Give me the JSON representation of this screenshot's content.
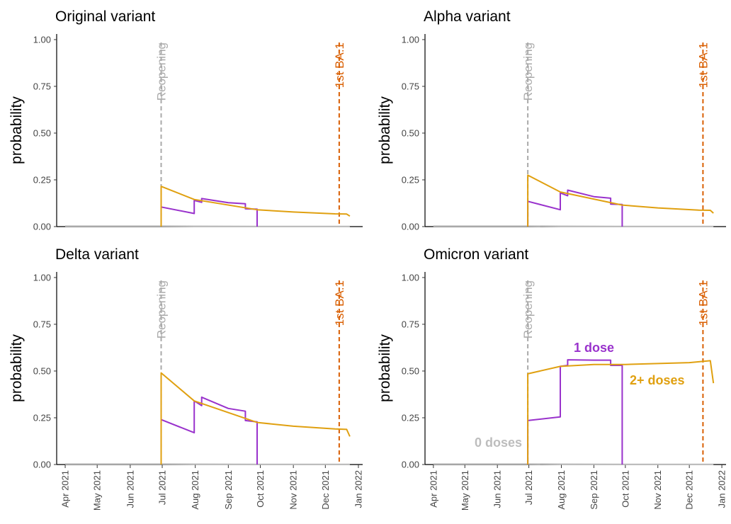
{
  "colors": {
    "zero_doses": "#bdbdbd",
    "one_dose": "#9932CC",
    "two_plus_doses": "#E0A010",
    "reopening": "#aaaaaa",
    "ba1": "#D95F02"
  },
  "shared": {
    "ylabel": "probability",
    "yticks": [
      "0.00",
      "0.25",
      "0.50",
      "0.75",
      "1.00"
    ],
    "ytick_values": [
      0,
      0.25,
      0.5,
      0.75,
      1.0
    ],
    "xticks": [
      "Apr 2021",
      "May 2021",
      "Jun 2021",
      "Jul 2021",
      "Aug 2021",
      "Sep 2021",
      "Oct 2021",
      "Nov 2021",
      "Dec 2021",
      "Jan 2022"
    ],
    "xtick_dates": [
      "2021-04-01",
      "2021-05-01",
      "2021-06-01",
      "2021-07-01",
      "2021-08-01",
      "2021-09-01",
      "2021-10-01",
      "2021-11-01",
      "2021-12-01",
      "2022-01-01"
    ],
    "xlim": [
      "2021-03-24",
      "2022-01-05"
    ],
    "ylim": [
      0,
      1.03
    ],
    "reopening_label": "Reopening",
    "reopening_date": "2021-06-30",
    "ba1_label": "1st BA.1",
    "ba1_date": "2021-12-14"
  },
  "chart_data": [
    {
      "type": "line",
      "title": "Original variant",
      "series": [
        {
          "key": "zero_doses",
          "x": [
            "2021-04-01",
            "2021-06-30",
            "2021-08-01",
            "2021-10-01",
            "2021-12-24"
          ],
          "values": [
            0.003,
            0.003,
            0.002,
            0.001,
            0.001
          ]
        },
        {
          "key": "one_dose",
          "x": [
            "2021-06-30",
            "2021-06-30",
            "2021-07-31",
            "2021-07-31",
            "2021-08-07",
            "2021-08-07",
            "2021-09-01",
            "2021-09-17",
            "2021-09-17",
            "2021-09-28",
            "2021-09-28"
          ],
          "values": [
            0.0,
            0.105,
            0.07,
            0.14,
            0.13,
            0.15,
            0.128,
            0.122,
            0.095,
            0.093,
            0.0
          ]
        },
        {
          "key": "two_plus_doses",
          "x": [
            "2021-06-30",
            "2021-06-30",
            "2021-07-31",
            "2021-09-28",
            "2021-11-01",
            "2021-12-10",
            "2021-12-21",
            "2021-12-24"
          ],
          "values": [
            0.0,
            0.215,
            0.145,
            0.09,
            0.078,
            0.068,
            0.067,
            0.056
          ]
        }
      ]
    },
    {
      "type": "line",
      "title": "Alpha variant",
      "series": [
        {
          "key": "zero_doses",
          "x": [
            "2021-04-01",
            "2021-06-30",
            "2021-08-01",
            "2021-10-01",
            "2021-12-24"
          ],
          "values": [
            0.003,
            0.003,
            0.002,
            0.001,
            0.001
          ]
        },
        {
          "key": "one_dose",
          "x": [
            "2021-06-30",
            "2021-06-30",
            "2021-07-31",
            "2021-07-31",
            "2021-08-07",
            "2021-08-07",
            "2021-09-01",
            "2021-09-17",
            "2021-09-17",
            "2021-09-28",
            "2021-09-28"
          ],
          "values": [
            0.0,
            0.135,
            0.09,
            0.18,
            0.165,
            0.195,
            0.16,
            0.152,
            0.12,
            0.118,
            0.0
          ]
        },
        {
          "key": "two_plus_doses",
          "x": [
            "2021-06-30",
            "2021-06-30",
            "2021-07-31",
            "2021-09-28",
            "2021-11-01",
            "2021-12-10",
            "2021-12-21",
            "2021-12-24"
          ],
          "values": [
            0.0,
            0.275,
            0.185,
            0.115,
            0.1,
            0.088,
            0.087,
            0.072
          ]
        }
      ]
    },
    {
      "type": "line",
      "title": "Delta variant",
      "series": [
        {
          "key": "zero_doses",
          "x": [
            "2021-04-01",
            "2021-06-30",
            "2021-08-01",
            "2021-10-01",
            "2021-12-24"
          ],
          "values": [
            0.003,
            0.003,
            0.002,
            0.001,
            0.001
          ]
        },
        {
          "key": "one_dose",
          "x": [
            "2021-06-30",
            "2021-06-30",
            "2021-07-31",
            "2021-07-31",
            "2021-08-07",
            "2021-08-07",
            "2021-09-01",
            "2021-09-17",
            "2021-09-17",
            "2021-09-28",
            "2021-09-28"
          ],
          "values": [
            0.0,
            0.24,
            0.17,
            0.34,
            0.315,
            0.36,
            0.3,
            0.285,
            0.235,
            0.228,
            0.0
          ]
        },
        {
          "key": "two_plus_doses",
          "x": [
            "2021-06-30",
            "2021-06-30",
            "2021-07-31",
            "2021-09-28",
            "2021-11-01",
            "2021-12-10",
            "2021-12-21",
            "2021-12-24"
          ],
          "values": [
            0.0,
            0.49,
            0.34,
            0.225,
            0.205,
            0.19,
            0.188,
            0.15
          ]
        }
      ]
    },
    {
      "type": "line",
      "title": "Omicron variant",
      "series": [
        {
          "key": "zero_doses",
          "x": [
            "2021-04-01",
            "2021-06-30",
            "2021-08-01",
            "2021-10-01",
            "2021-12-24"
          ],
          "values": [
            0.003,
            0.003,
            0.002,
            0.001,
            0.001
          ]
        },
        {
          "key": "one_dose",
          "x": [
            "2021-06-30",
            "2021-06-30",
            "2021-07-31",
            "2021-07-31",
            "2021-08-07",
            "2021-08-07",
            "2021-09-01",
            "2021-09-17",
            "2021-09-17",
            "2021-09-28",
            "2021-09-28"
          ],
          "values": [
            0.0,
            0.235,
            0.255,
            0.525,
            0.53,
            0.56,
            0.558,
            0.558,
            0.53,
            0.53,
            0.0
          ]
        },
        {
          "key": "two_plus_doses",
          "x": [
            "2021-06-30",
            "2021-06-30",
            "2021-07-31",
            "2021-09-01",
            "2021-10-01",
            "2021-11-01",
            "2021-12-01",
            "2021-12-21",
            "2021-12-24"
          ],
          "values": [
            0.0,
            0.485,
            0.525,
            0.535,
            0.535,
            0.54,
            0.545,
            0.555,
            0.435
          ]
        }
      ],
      "annotations": {
        "zero_doses": "0 doses",
        "one_dose": "1 dose",
        "two_plus_doses": "2+ doses"
      }
    }
  ]
}
